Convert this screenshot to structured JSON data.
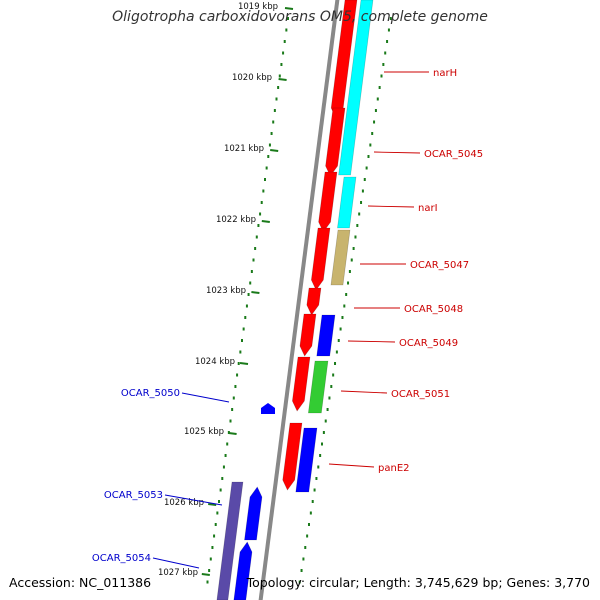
{
  "title": "Oligotropha carboxidovorans OM5, complete genome",
  "footer": {
    "accession": "Accession: NC_011386",
    "topology": "Topology: circular; Length: 3,745,629 bp; Genes: 3,770"
  },
  "colors": {
    "forward_cds": "#ff0000",
    "reverse_cds": "#0000ff",
    "cyan_feature": "#00ffff",
    "tan_feature": "#c8b46e",
    "green_feature": "#33cc33",
    "purple_feature": "#5a4aa8",
    "backbone": "#888888",
    "ticks": "#1a7a1a"
  },
  "scale_labels": [
    "1019 kbp",
    "1020 kbp",
    "1021 kbp",
    "1022 kbp",
    "1023 kbp",
    "1024 kbp",
    "1025 kbp",
    "1026 kbp",
    "1027 kbp"
  ],
  "forward_gene_labels": [
    "narH",
    "OCAR_5045",
    "narI",
    "OCAR_5047",
    "OCAR_5048",
    "OCAR_5049",
    "OCAR_5051",
    "panE2"
  ],
  "reverse_gene_labels": [
    "OCAR_5050",
    "OCAR_5053",
    "OCAR_5054"
  ]
}
